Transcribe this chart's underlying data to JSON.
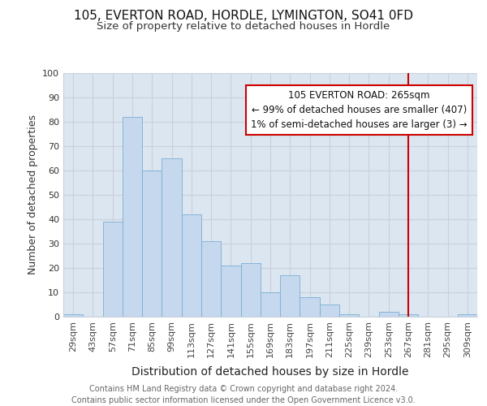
{
  "title1": "105, EVERTON ROAD, HORDLE, LYMINGTON, SO41 0FD",
  "title2": "Size of property relative to detached houses in Hordle",
  "xlabel": "Distribution of detached houses by size in Hordle",
  "ylabel": "Number of detached properties",
  "footer": "Contains HM Land Registry data © Crown copyright and database right 2024.\nContains public sector information licensed under the Open Government Licence v3.0.",
  "categories": [
    "29sqm",
    "43sqm",
    "57sqm",
    "71sqm",
    "85sqm",
    "99sqm",
    "113sqm",
    "127sqm",
    "141sqm",
    "155sqm",
    "169sqm",
    "183sqm",
    "197sqm",
    "211sqm",
    "225sqm",
    "239sqm",
    "253sqm",
    "267sqm",
    "281sqm",
    "295sqm",
    "309sqm"
  ],
  "values": [
    1,
    0,
    39,
    82,
    60,
    65,
    42,
    31,
    21,
    22,
    10,
    17,
    8,
    5,
    1,
    0,
    2,
    1,
    0,
    0,
    1
  ],
  "bar_color": "#c5d8ed",
  "bar_edge_color": "#7aafd4",
  "vline_x_index": 17,
  "vline_color": "#cc0000",
  "annotation_line1": "105 EVERTON ROAD: 265sqm",
  "annotation_line2": "← 99% of detached houses are smaller (407)",
  "annotation_line3": "1% of semi-detached houses are larger (3) →",
  "annotation_box_color": "#cc0000",
  "ylim": [
    0,
    100
  ],
  "yticks": [
    0,
    10,
    20,
    30,
    40,
    50,
    60,
    70,
    80,
    90,
    100
  ],
  "grid_color": "#c8d0dc",
  "bg_color": "#dce6f0",
  "fig_bg_color": "#ffffff",
  "title1_fontsize": 11,
  "title2_fontsize": 9.5,
  "xlabel_fontsize": 10,
  "ylabel_fontsize": 9,
  "tick_fontsize": 8,
  "footer_fontsize": 7,
  "annot_fontsize": 8.5
}
